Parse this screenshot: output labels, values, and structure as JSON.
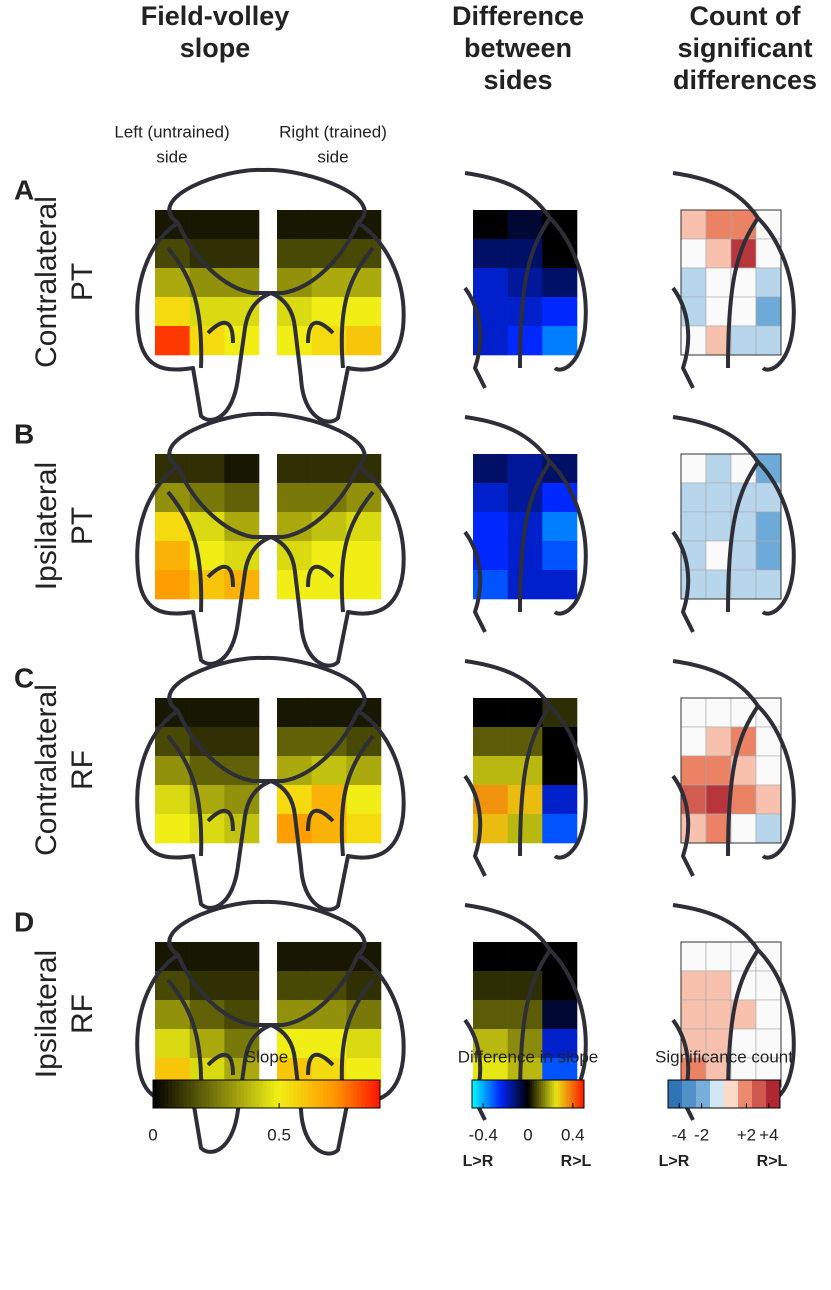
{
  "headers": [
    [
      "Field-volley",
      "slope"
    ],
    [
      "Difference",
      "between",
      "sides"
    ],
    [
      "Count of",
      "significant",
      "differences"
    ]
  ],
  "side_labels": [
    [
      "Left (untrained)",
      "side"
    ],
    [
      "Right (trained)",
      "side"
    ]
  ],
  "panels": [
    {
      "letter": "A",
      "label": [
        "Contralateral",
        "PT"
      ],
      "slope_left": [
        [
          0.05,
          0.05,
          0.05
        ],
        [
          0.15,
          0.1,
          0.1
        ],
        [
          0.35,
          0.3,
          0.3
        ],
        [
          0.55,
          0.45,
          0.45
        ],
        [
          0.85,
          0.55,
          0.5
        ]
      ],
      "slope_right": [
        [
          0.05,
          0.05,
          0.05
        ],
        [
          0.15,
          0.15,
          0.15
        ],
        [
          0.3,
          0.35,
          0.35
        ],
        [
          0.45,
          0.5,
          0.5
        ],
        [
          0.5,
          0.55,
          0.6
        ]
      ],
      "difference": [
        [
          0,
          -0.05,
          0
        ],
        [
          -0.1,
          -0.1,
          0
        ],
        [
          -0.2,
          -0.15,
          -0.1
        ],
        [
          -0.2,
          -0.2,
          -0.25
        ],
        [
          -0.2,
          -0.25,
          -0.35
        ]
      ],
      "count": [
        [
          1,
          2,
          2,
          0
        ],
        [
          0,
          1,
          4,
          0
        ],
        [
          -1,
          0,
          0,
          -1
        ],
        [
          -1,
          0,
          0,
          -2
        ],
        [
          0,
          1,
          -1,
          -1
        ]
      ]
    },
    {
      "letter": "B",
      "label": [
        "Ipsilateral",
        "PT"
      ],
      "slope_left": [
        [
          0.1,
          0.1,
          0.05
        ],
        [
          0.3,
          0.25,
          0.2
        ],
        [
          0.55,
          0.45,
          0.35
        ],
        [
          0.65,
          0.5,
          0.45
        ],
        [
          0.7,
          0.6,
          0.65
        ]
      ],
      "slope_right": [
        [
          0.1,
          0.1,
          0.1
        ],
        [
          0.25,
          0.25,
          0.3
        ],
        [
          0.35,
          0.4,
          0.45
        ],
        [
          0.45,
          0.5,
          0.5
        ],
        [
          0.5,
          0.5,
          0.5
        ]
      ],
      "difference": [
        [
          -0.1,
          -0.15,
          -0.1
        ],
        [
          -0.2,
          -0.15,
          -0.25
        ],
        [
          -0.25,
          -0.2,
          -0.35
        ],
        [
          -0.25,
          -0.2,
          -0.3
        ],
        [
          -0.3,
          -0.2,
          -0.2
        ]
      ],
      "count": [
        [
          0,
          -1,
          0,
          -2
        ],
        [
          -1,
          -1,
          -1,
          -1
        ],
        [
          -1,
          -1,
          -1,
          -2
        ],
        [
          -1,
          0,
          -1,
          -2
        ],
        [
          -1,
          -1,
          -1,
          -1
        ]
      ]
    },
    {
      "letter": "C",
      "label": [
        "Contralateral",
        "RF"
      ],
      "slope_left": [
        [
          0.05,
          0.05,
          0.05
        ],
        [
          0.15,
          0.1,
          0.1
        ],
        [
          0.3,
          0.2,
          0.2
        ],
        [
          0.45,
          0.35,
          0.3
        ],
        [
          0.5,
          0.45,
          0.4
        ]
      ],
      "slope_right": [
        [
          0.05,
          0.05,
          0.05
        ],
        [
          0.2,
          0.2,
          0.15
        ],
        [
          0.35,
          0.4,
          0.35
        ],
        [
          0.55,
          0.65,
          0.5
        ],
        [
          0.7,
          0.65,
          0.55
        ]
      ],
      "difference": [
        [
          0,
          0,
          0.05
        ],
        [
          0.1,
          0.1,
          0
        ],
        [
          0.2,
          0.2,
          0
        ],
        [
          0.35,
          0.3,
          -0.2
        ],
        [
          0.3,
          0.2,
          -0.3
        ]
      ],
      "count": [
        [
          0,
          0,
          0,
          0
        ],
        [
          0,
          1,
          2,
          0
        ],
        [
          2,
          2,
          1,
          0
        ],
        [
          3,
          4,
          2,
          1
        ],
        [
          1,
          2,
          0,
          -1
        ]
      ]
    },
    {
      "letter": "D",
      "label": [
        "Ipsilateral",
        "RF"
      ],
      "slope_left": [
        [
          0.05,
          0.05,
          0.05
        ],
        [
          0.15,
          0.1,
          0.1
        ],
        [
          0.3,
          0.2,
          0.15
        ],
        [
          0.45,
          0.35,
          0.25
        ],
        [
          0.6,
          0.45,
          0.35
        ]
      ],
      "slope_right": [
        [
          0.05,
          0.05,
          0.05
        ],
        [
          0.15,
          0.15,
          0.1
        ],
        [
          0.3,
          0.3,
          0.25
        ],
        [
          0.5,
          0.5,
          0.45
        ],
        [
          0.6,
          0.55,
          0.5
        ]
      ],
      "difference": [
        [
          0,
          0,
          0
        ],
        [
          0.05,
          0.05,
          0
        ],
        [
          0.1,
          0.1,
          -0.05
        ],
        [
          0.2,
          0.15,
          -0.2
        ],
        [
          0.25,
          0.2,
          -0.3
        ]
      ],
      "count": [
        [
          0,
          0,
          0,
          0
        ],
        [
          1,
          1,
          0,
          0
        ],
        [
          1,
          1,
          1,
          0
        ],
        [
          1,
          1,
          0,
          0
        ],
        [
          2,
          1,
          0,
          0
        ]
      ]
    }
  ],
  "colorbars": [
    {
      "title": "Slope",
      "lim": [
        0,
        0.9
      ],
      "ticks": [
        0,
        0.5
      ]
    },
    {
      "title": "Difference in slope",
      "lim": [
        -0.5,
        0.5
      ],
      "ticks": [
        -0.4,
        0,
        0.4
      ],
      "ends": [
        "L>R",
        "R>L"
      ]
    },
    {
      "title": "Significance count",
      "lim": [
        -5,
        5
      ],
      "ticks": [
        -4,
        -2,
        {
          "value": 2,
          "label": "+2"
        },
        {
          "value": 4,
          "label": "+4"
        }
      ],
      "ends": [
        "L>R",
        "R>L"
      ]
    }
  ]
}
